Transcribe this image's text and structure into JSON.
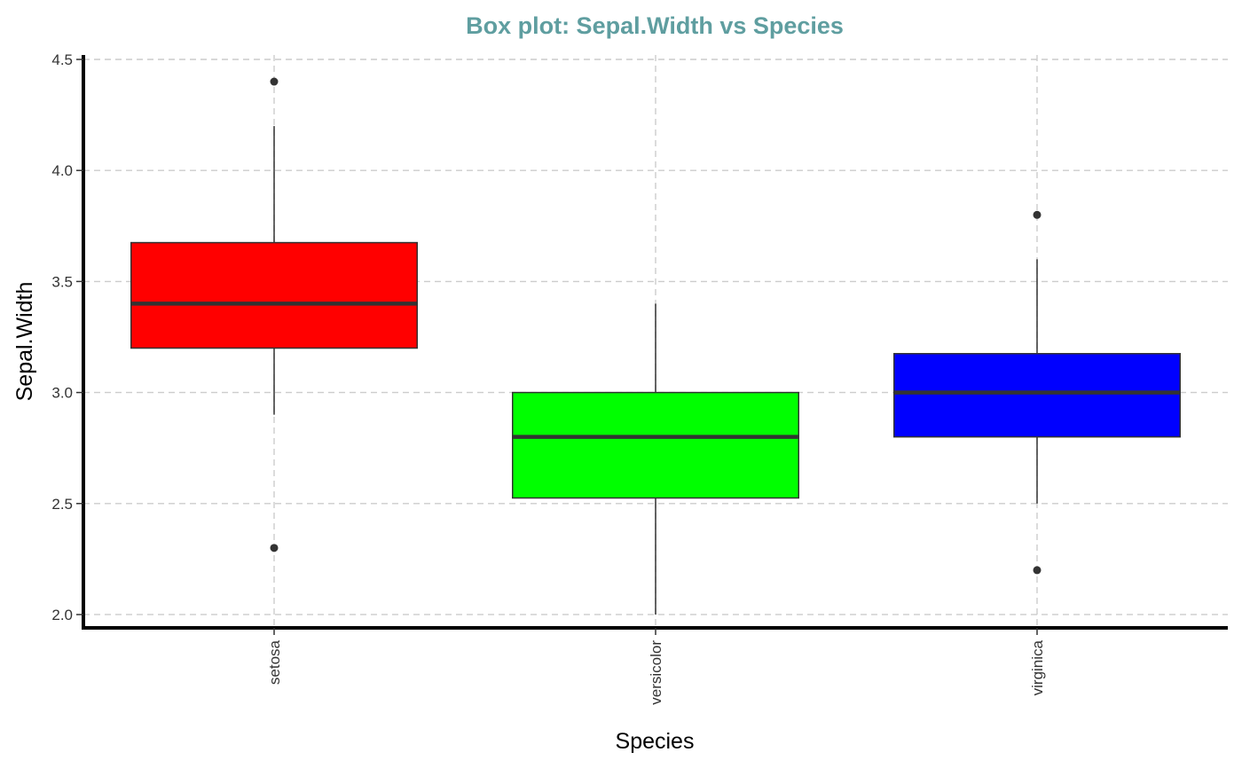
{
  "chart_data": {
    "type": "box",
    "title": "Box plot: Sepal.Width vs Species",
    "xlabel": "Species",
    "ylabel": "Sepal.Width",
    "ylim": [
      1.94,
      4.52
    ],
    "yticks": [
      2.0,
      2.5,
      3.0,
      3.5,
      4.0,
      4.5
    ],
    "ytick_labels": [
      "2.0",
      "2.5",
      "3.0",
      "3.5",
      "4.0",
      "4.5"
    ],
    "grid": "major dashed, both axes",
    "legend": "none",
    "categories": [
      "setosa",
      "versicolor",
      "virginica"
    ],
    "boxes": [
      {
        "category": "setosa",
        "fill": "#FF0000",
        "q1": 3.2,
        "median": 3.4,
        "q3": 3.675,
        "whisker_low": 2.9,
        "whisker_high": 4.2,
        "outliers": [
          4.4,
          2.3
        ]
      },
      {
        "category": "versicolor",
        "fill": "#00FF00",
        "q1": 2.525,
        "median": 2.8,
        "q3": 3.0,
        "whisker_low": 2.0,
        "whisker_high": 3.4,
        "outliers": []
      },
      {
        "category": "virginica",
        "fill": "#0000FF",
        "q1": 2.8,
        "median": 3.0,
        "q3": 3.175,
        "whisker_low": 2.5,
        "whisker_high": 3.6,
        "outliers": [
          3.8,
          2.2
        ]
      }
    ],
    "colors": {
      "title": "#5F9EA0",
      "box_outline": "#333333",
      "axis": "#000000"
    }
  }
}
